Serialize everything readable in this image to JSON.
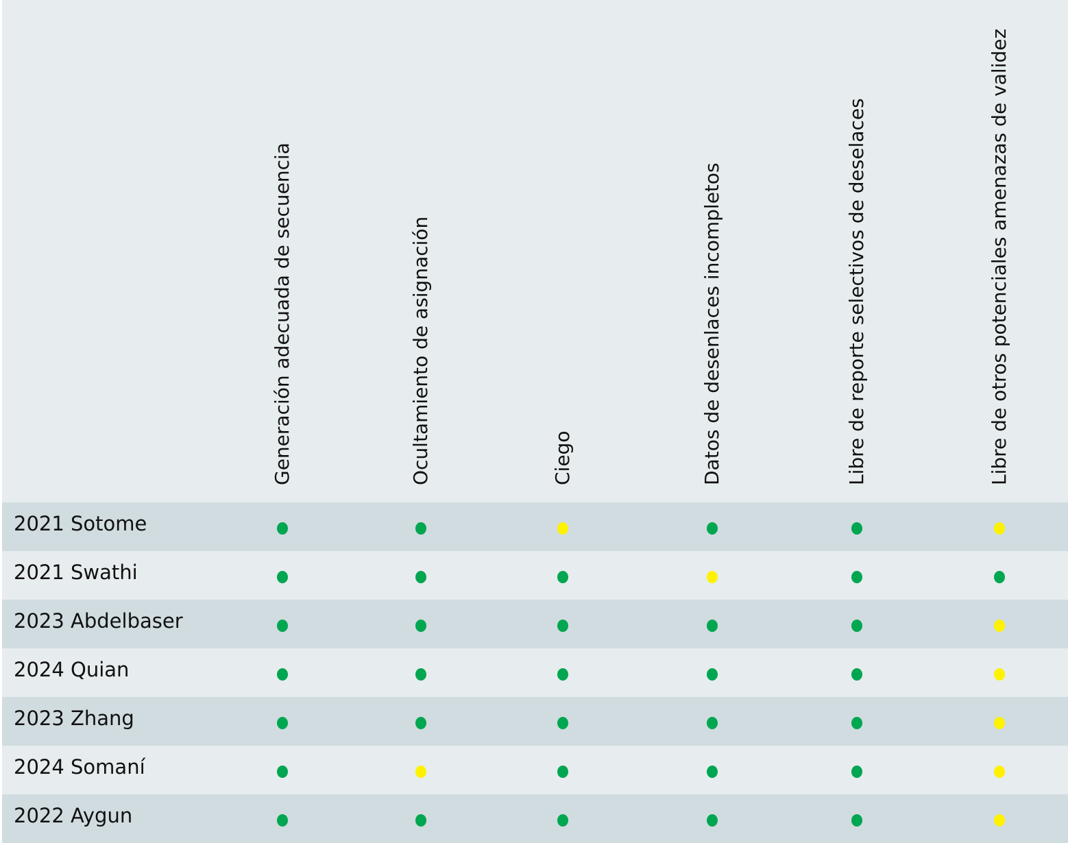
{
  "chart_data": {
    "type": "table",
    "title": "",
    "columns": [
      "Generación adecuada de secuencia",
      "Ocultamiento de asignación",
      "Ciego",
      "Datos de desenlaces incompletos",
      "Libre de reporte selectivos de deselaces",
      "Libre de otros potenciales amenazas de validez"
    ],
    "rows": [
      {
        "label": "2021 Sotome",
        "values": [
          "low",
          "low",
          "unclear",
          "low",
          "low",
          "unclear"
        ]
      },
      {
        "label": "2021 Swathi",
        "values": [
          "low",
          "low",
          "low",
          "unclear",
          "low",
          "low"
        ]
      },
      {
        "label": "2023 Abdelbaser",
        "values": [
          "low",
          "low",
          "low",
          "low",
          "low",
          "unclear"
        ]
      },
      {
        "label": "2024 Quian",
        "values": [
          "low",
          "low",
          "low",
          "low",
          "low",
          "unclear"
        ]
      },
      {
        "label": "2023 Zhang",
        "values": [
          "low",
          "low",
          "low",
          "low",
          "low",
          "unclear"
        ]
      },
      {
        "label": "2024 Somaní",
        "values": [
          "low",
          "unclear",
          "low",
          "low",
          "low",
          "unclear"
        ]
      },
      {
        "label": "2022 Aygun",
        "values": [
          "low",
          "low",
          "low",
          "low",
          "low",
          "unclear"
        ]
      }
    ],
    "colors": {
      "low": "#00a650",
      "unclear": "#fff200"
    }
  }
}
